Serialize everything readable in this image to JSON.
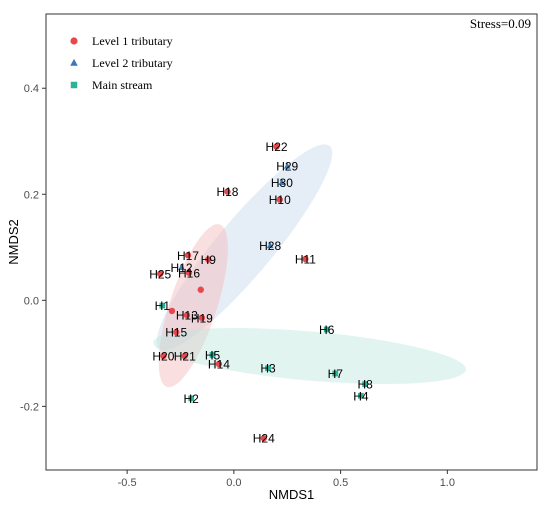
{
  "chart_data": {
    "type": "scatter",
    "title": "",
    "xlabel": "NMDS1",
    "ylabel": "NMDS2",
    "xlim": [
      -0.88,
      1.42
    ],
    "ylim": [
      -0.32,
      0.54
    ],
    "x_ticks": [
      -0.5,
      0.0,
      0.5,
      1.0
    ],
    "y_ticks": [
      -0.2,
      0.0,
      0.2,
      0.4
    ],
    "x_tick_labels": [
      "-0.5",
      "0.0",
      "0.5",
      "1.0"
    ],
    "y_tick_labels": [
      "-0.2",
      "0.0",
      "0.2",
      "0.4"
    ],
    "grid": false,
    "legend_position": "top-left",
    "annotation": "Stress=0.09",
    "series": [
      {
        "name": "Level 1 tributary",
        "marker": "circle",
        "color": "#E8474C",
        "fill": "#F5B7BB",
        "points": [
          {
            "label": "H24",
            "x": 0.14,
            "y": -0.26
          },
          {
            "label": "H14",
            "x": -0.07,
            "y": -0.12
          },
          {
            "label": "H21",
            "x": -0.23,
            "y": -0.105
          },
          {
            "label": "H20",
            "x": -0.33,
            "y": -0.105
          },
          {
            "label": "H15",
            "x": -0.27,
            "y": -0.06
          },
          {
            "label": "H19",
            "x": -0.15,
            "y": -0.033
          },
          {
            "label": "H13",
            "x": -0.22,
            "y": -0.028
          },
          {
            "label": "H16",
            "x": -0.21,
            "y": 0.052
          },
          {
            "label": "H17",
            "x": -0.215,
            "y": 0.085
          },
          {
            "label": "H9",
            "x": -0.12,
            "y": 0.077
          },
          {
            "label": "H25",
            "x": -0.345,
            "y": 0.05
          },
          {
            "label": "H11",
            "x": 0.335,
            "y": 0.078
          },
          {
            "label": "H18",
            "x": -0.03,
            "y": 0.205
          },
          {
            "label": "H10",
            "x": 0.215,
            "y": 0.19
          },
          {
            "label": "H22",
            "x": 0.2,
            "y": 0.29
          },
          {
            "label": "",
            "x": -0.29,
            "y": -0.02
          },
          {
            "label": "",
            "x": -0.155,
            "y": 0.02
          }
        ]
      },
      {
        "name": "Level 2 tributary",
        "marker": "triangle",
        "color": "#3C78B4",
        "fill": "#C6D8EB",
        "points": [
          {
            "label": "H29",
            "x": 0.25,
            "y": 0.253
          },
          {
            "label": "H30",
            "x": 0.225,
            "y": 0.222
          },
          {
            "label": "H28",
            "x": 0.17,
            "y": 0.103
          },
          {
            "label": "H12",
            "x": -0.245,
            "y": 0.062
          }
        ]
      },
      {
        "name": "Main stream",
        "marker": "square",
        "color": "#2BB397",
        "fill": "#BFE6DD",
        "points": [
          {
            "label": "H1",
            "x": -0.335,
            "y": -0.01
          },
          {
            "label": "H5",
            "x": -0.1,
            "y": -0.103
          },
          {
            "label": "H3",
            "x": 0.16,
            "y": -0.128
          },
          {
            "label": "H6",
            "x": 0.435,
            "y": -0.055
          },
          {
            "label": "H7",
            "x": 0.475,
            "y": -0.138
          },
          {
            "label": "H8",
            "x": 0.615,
            "y": -0.158
          },
          {
            "label": "H4",
            "x": 0.595,
            "y": -0.18
          },
          {
            "label": "H2",
            "x": -0.2,
            "y": -0.185
          }
        ]
      }
    ],
    "ellipses": [
      {
        "series": "Level 2 tributary",
        "cx": 0.05,
        "cy": 0.1,
        "rx": 0.62,
        "ry": 0.13,
        "angle_deg": 50
      },
      {
        "series": "Level 1 tributary",
        "cx": -0.19,
        "cy": -0.01,
        "rx": 0.4,
        "ry": 0.11,
        "angle_deg": 72
      },
      {
        "series": "Main stream",
        "cx": 0.355,
        "cy": -0.105,
        "rx": 0.735,
        "ry": 0.115,
        "angle_deg": -5
      }
    ]
  }
}
